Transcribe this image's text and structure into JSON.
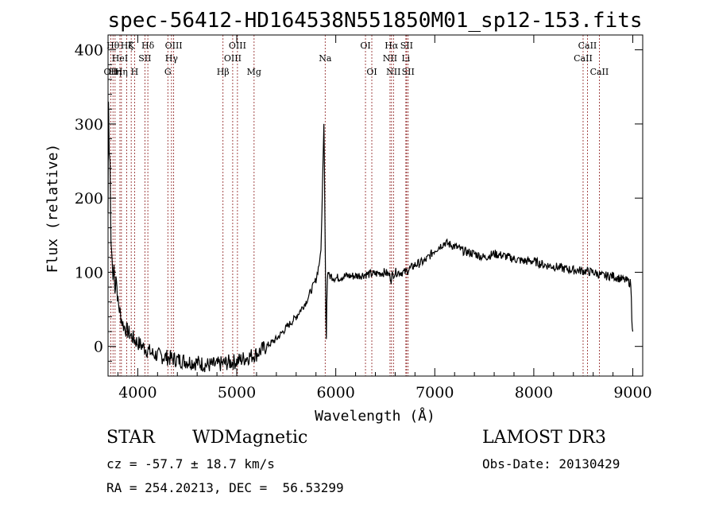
{
  "chart_data": {
    "type": "line",
    "title": "spec-56412-HD164538N551850M01_sp12-153.fits",
    "xlabel": "Wavelength (Å)",
    "ylabel": "Flux (relative)",
    "xlim": [
      3700,
      9100
    ],
    "ylim": [
      -40,
      420
    ],
    "xticks": [
      4000,
      5000,
      6000,
      7000,
      8000,
      9000
    ],
    "yticks": [
      0,
      100,
      200,
      300,
      400
    ],
    "series": [
      {
        "name": "flux",
        "x": [
          3700,
          3705,
          3712,
          3720,
          3730,
          3740,
          3750,
          3760,
          3770,
          3780,
          3790,
          3800,
          3815,
          3830,
          3850,
          3870,
          3900,
          3930,
          3960,
          4000,
          4050,
          4100,
          4150,
          4200,
          4300,
          4400,
          4500,
          4600,
          4700,
          4800,
          4900,
          5000,
          5100,
          5200,
          5300,
          5400,
          5500,
          5600,
          5700,
          5750,
          5800,
          5830,
          5850,
          5860,
          5870,
          5880,
          5885,
          5890,
          5895,
          5900,
          5905,
          5910,
          5915,
          5920,
          5930,
          5950,
          6000,
          6100,
          6200,
          6300,
          6400,
          6500,
          6550,
          6560,
          6570,
          6600,
          6700,
          6800,
          6900,
          7000,
          7100,
          7200,
          7300,
          7400,
          7500,
          7600,
          7700,
          7800,
          7900,
          8000,
          8100,
          8200,
          8300,
          8400,
          8500,
          8600,
          8700,
          8800,
          8900,
          8950,
          8980,
          8990,
          9000
        ],
        "y": [
          180,
          330,
          260,
          250,
          140,
          120,
          90,
          110,
          70,
          100,
          80,
          60,
          50,
          40,
          30,
          25,
          20,
          15,
          10,
          5,
          0,
          -5,
          -10,
          -12,
          -15,
          -18,
          -20,
          -22,
          -25,
          -25,
          -22,
          -20,
          -15,
          -10,
          0,
          10,
          25,
          40,
          60,
          75,
          90,
          110,
          130,
          180,
          240,
          300,
          250,
          180,
          110,
          40,
          10,
          60,
          90,
          100,
          95,
          95,
          92,
          95,
          95,
          97,
          98,
          100,
          95,
          90,
          96,
          100,
          100,
          110,
          115,
          130,
          140,
          135,
          128,
          125,
          120,
          125,
          122,
          118,
          115,
          115,
          110,
          108,
          105,
          103,
          102,
          100,
          95,
          95,
          90,
          88,
          85,
          40,
          20
        ]
      }
    ],
    "lines": [
      {
        "wl": 3727,
        "label": "OII",
        "row": 3
      },
      {
        "wl": 3750,
        "label": "Hθ",
        "row": 1
      },
      {
        "wl": 3771,
        "label": "Hη",
        "row": 3
      },
      {
        "wl": 3820,
        "label": "HeI",
        "row": 2
      },
      {
        "wl": 3835,
        "label": "Hη",
        "row": 3
      },
      {
        "wl": 3889,
        "label": "Hζ",
        "row": 1
      },
      {
        "wl": 3934,
        "label": "K",
        "row": 1
      },
      {
        "wl": 3968,
        "label": "H",
        "row": 3
      },
      {
        "wl": 4072,
        "label": "SII",
        "row": 2
      },
      {
        "wl": 4102,
        "label": "Hδ",
        "row": 1
      },
      {
        "wl": 4304,
        "label": "G",
        "row": 3
      },
      {
        "wl": 4341,
        "label": "Hγ",
        "row": 2
      },
      {
        "wl": 4363,
        "label": "OIII",
        "row": 1
      },
      {
        "wl": 4861,
        "label": "Hβ",
        "row": 3
      },
      {
        "wl": 4959,
        "label": "OIII",
        "row": 2
      },
      {
        "wl": 5007,
        "label": "OIII",
        "row": 1
      },
      {
        "wl": 5175,
        "label": "Mg",
        "row": 3
      },
      {
        "wl": 5893,
        "label": "Na",
        "row": 2
      },
      {
        "wl": 6300,
        "label": "OI",
        "row": 1
      },
      {
        "wl": 6364,
        "label": "OI",
        "row": 3
      },
      {
        "wl": 6548,
        "label": "NII",
        "row": 2
      },
      {
        "wl": 6563,
        "label": "Hα",
        "row": 1
      },
      {
        "wl": 6583,
        "label": "NII",
        "row": 3
      },
      {
        "wl": 6708,
        "label": "Li",
        "row": 2
      },
      {
        "wl": 6716,
        "label": "SII",
        "row": 1
      },
      {
        "wl": 6731,
        "label": "SII",
        "row": 3
      },
      {
        "wl": 8498,
        "label": "CaII",
        "row": 2
      },
      {
        "wl": 8542,
        "label": "CaII",
        "row": 1
      },
      {
        "wl": 8662,
        "label": "CaII",
        "row": 3
      }
    ]
  },
  "info": {
    "class": "STAR",
    "subclass": "WDMagnetic",
    "survey": "LAMOST DR3",
    "cz": "cz = -57.7 ± 18.7 km/s",
    "obs_date": "Obs-Date: 20130429",
    "radec": "RA = 254.20213, DEC =  56.53299"
  }
}
